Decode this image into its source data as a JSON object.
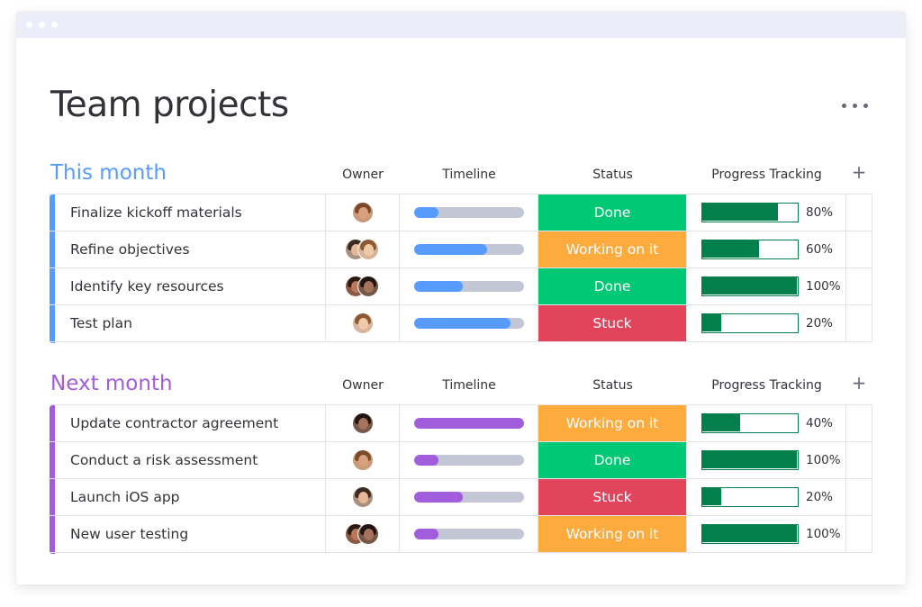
{
  "page": {
    "title": "Team projects",
    "more_icon": "more-horizontal-icon"
  },
  "colors": {
    "this_month": "#579bfc",
    "next_month": "#a25ddc",
    "done": "#00c875",
    "working": "#fdab3d",
    "stuck": "#e2445c",
    "progress": "#037f4c",
    "timeline_track": "#c3c6d4"
  },
  "groups": [
    {
      "title": "This month",
      "color": "#579bfc",
      "columns": {
        "owner": "Owner",
        "timeline": "Timeline",
        "status": "Status",
        "progress": "Progress Tracking",
        "add": "+"
      },
      "rows": [
        {
          "name": "Finalize kickoff materials",
          "owners": 1,
          "timeline": 0.22,
          "status": "Done",
          "status_color": "#00c875",
          "progress": 0.8,
          "progress_label": "80%"
        },
        {
          "name": "Refine objectives",
          "owners": 2,
          "timeline": 0.66,
          "status": "Working on it",
          "status_color": "#fdab3d",
          "progress": 0.6,
          "progress_label": "60%"
        },
        {
          "name": "Identify key resources",
          "owners": 2,
          "timeline": 0.44,
          "status": "Done",
          "status_color": "#00c875",
          "progress": 1.0,
          "progress_label": "100%"
        },
        {
          "name": "Test plan",
          "owners": 1,
          "timeline": 0.88,
          "status": "Stuck",
          "status_color": "#e2445c",
          "progress": 0.2,
          "progress_label": "20%"
        }
      ]
    },
    {
      "title": "Next month",
      "color": "#a25ddc",
      "columns": {
        "owner": "Owner",
        "timeline": "Timeline",
        "status": "Status",
        "progress": "Progress Tracking",
        "add": "+"
      },
      "rows": [
        {
          "name": "Update contractor agreement",
          "owners": 1,
          "timeline": 1.0,
          "status": "Working on it",
          "status_color": "#fdab3d",
          "progress": 0.4,
          "progress_label": "40%"
        },
        {
          "name": "Conduct a risk assessment",
          "owners": 1,
          "timeline": 0.22,
          "status": "Done",
          "status_color": "#00c875",
          "progress": 1.0,
          "progress_label": "100%"
        },
        {
          "name": "Launch iOS app",
          "owners": 1,
          "timeline": 0.44,
          "status": "Stuck",
          "status_color": "#e2445c",
          "progress": 0.2,
          "progress_label": "20%"
        },
        {
          "name": "New user testing",
          "owners": 2,
          "timeline": 0.22,
          "status": "Working on it",
          "status_color": "#fdab3d",
          "progress": 1.0,
          "progress_label": "100%"
        }
      ]
    }
  ]
}
